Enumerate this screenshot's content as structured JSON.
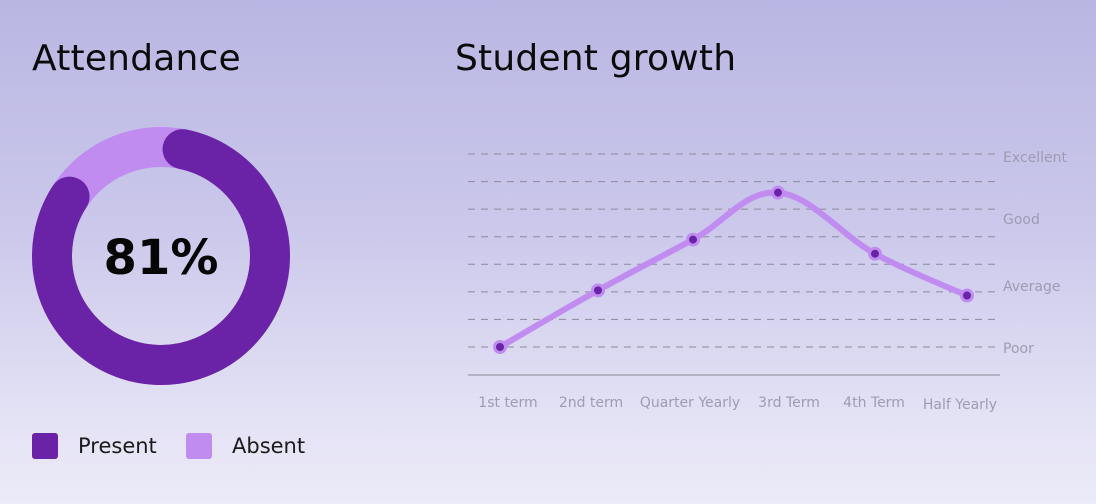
{
  "attendance": {
    "title": "Attendance",
    "center_label": "81%"
  },
  "growth": {
    "title": "Student growth"
  },
  "colors": {
    "present": "#6a23a6",
    "absent": "#c08cf0",
    "line": "#c08cf0",
    "point": "#6a23a6",
    "grid": "#8a8a9a",
    "axis": "#a5a3b5"
  },
  "chart_data": [
    {
      "type": "pie",
      "title": "Attendance",
      "categories": [
        "Present",
        "Absent"
      ],
      "values": [
        81,
        19
      ],
      "center_label": "81%",
      "legend": "bottom-left"
    },
    {
      "type": "line",
      "title": "Student growth",
      "categories": [
        "1st term",
        "2nd term",
        "Quarter Yearly",
        "3rd Term",
        "4th Term",
        "Half Yearly"
      ],
      "y_ticks": [
        "Poor",
        "Average",
        "Good",
        "Excellent"
      ],
      "y_tick_values": [
        1,
        2,
        3,
        4
      ],
      "ylim": [
        1,
        4
      ],
      "grid": "dashed horizontal",
      "values": [
        1.0,
        1.88,
        2.67,
        3.4,
        2.45,
        1.8
      ]
    }
  ]
}
